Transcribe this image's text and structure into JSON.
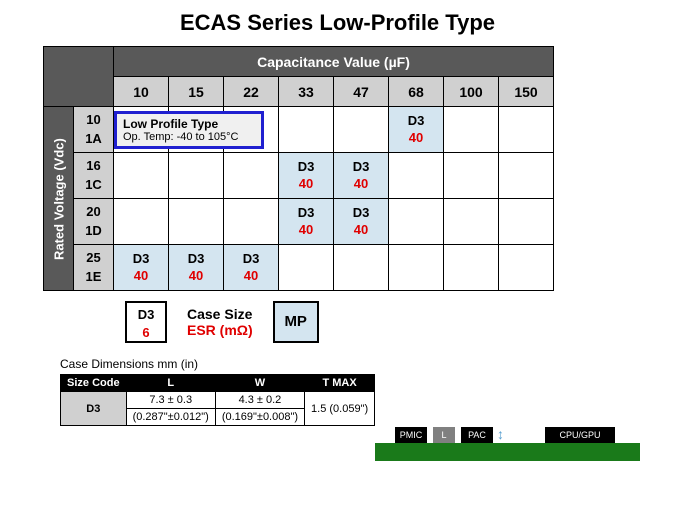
{
  "title": "ECAS Series Low-Profile Type",
  "cap_header": "Capacitance Value (µF)",
  "volt_header": "Rated Voltage (Vdc)",
  "cap_columns": [
    "10",
    "15",
    "22",
    "33",
    "47",
    "68",
    "100",
    "150"
  ],
  "volt_rows": [
    {
      "v": "10",
      "code": "1A"
    },
    {
      "v": "16",
      "code": "1C"
    },
    {
      "v": "20",
      "code": "1D"
    },
    {
      "v": "25",
      "code": "1E"
    }
  ],
  "cells": {
    "r0c5": {
      "case": "D3",
      "esr": "40"
    },
    "r1c3": {
      "case": "D3",
      "esr": "40"
    },
    "r1c4": {
      "case": "D3",
      "esr": "40"
    },
    "r2c3": {
      "case": "D3",
      "esr": "40"
    },
    "r2c4": {
      "case": "D3",
      "esr": "40"
    },
    "r3c0": {
      "case": "D3",
      "esr": "40"
    },
    "r3c1": {
      "case": "D3",
      "esr": "40"
    },
    "r3c2": {
      "case": "D3",
      "esr": "40"
    }
  },
  "callout": {
    "title": "Low Profile Type",
    "sub": "Op. Temp: -40 to 105°C"
  },
  "legend": {
    "box_case": "D3",
    "box_esr": "6",
    "case_label": "Case Size",
    "esr_label": "ESR (mΩ)",
    "mp": "MP"
  },
  "dim": {
    "title": "Case Dimensions mm (in)",
    "headers": [
      "Size Code",
      "L",
      "W",
      "T MAX"
    ],
    "row": {
      "code": "D3",
      "L": "7.3 ± 0.3",
      "L2": "(0.287\"±0.012\")",
      "W": "4.3 ± 0.2",
      "W2": "(0.169\"±0.008\")",
      "T": "1.5 (0.059\")"
    }
  },
  "diagram": {
    "pmic": "PMIC",
    "l": "L",
    "pac": "PAC",
    "cpu": "CPU/GPU"
  }
}
